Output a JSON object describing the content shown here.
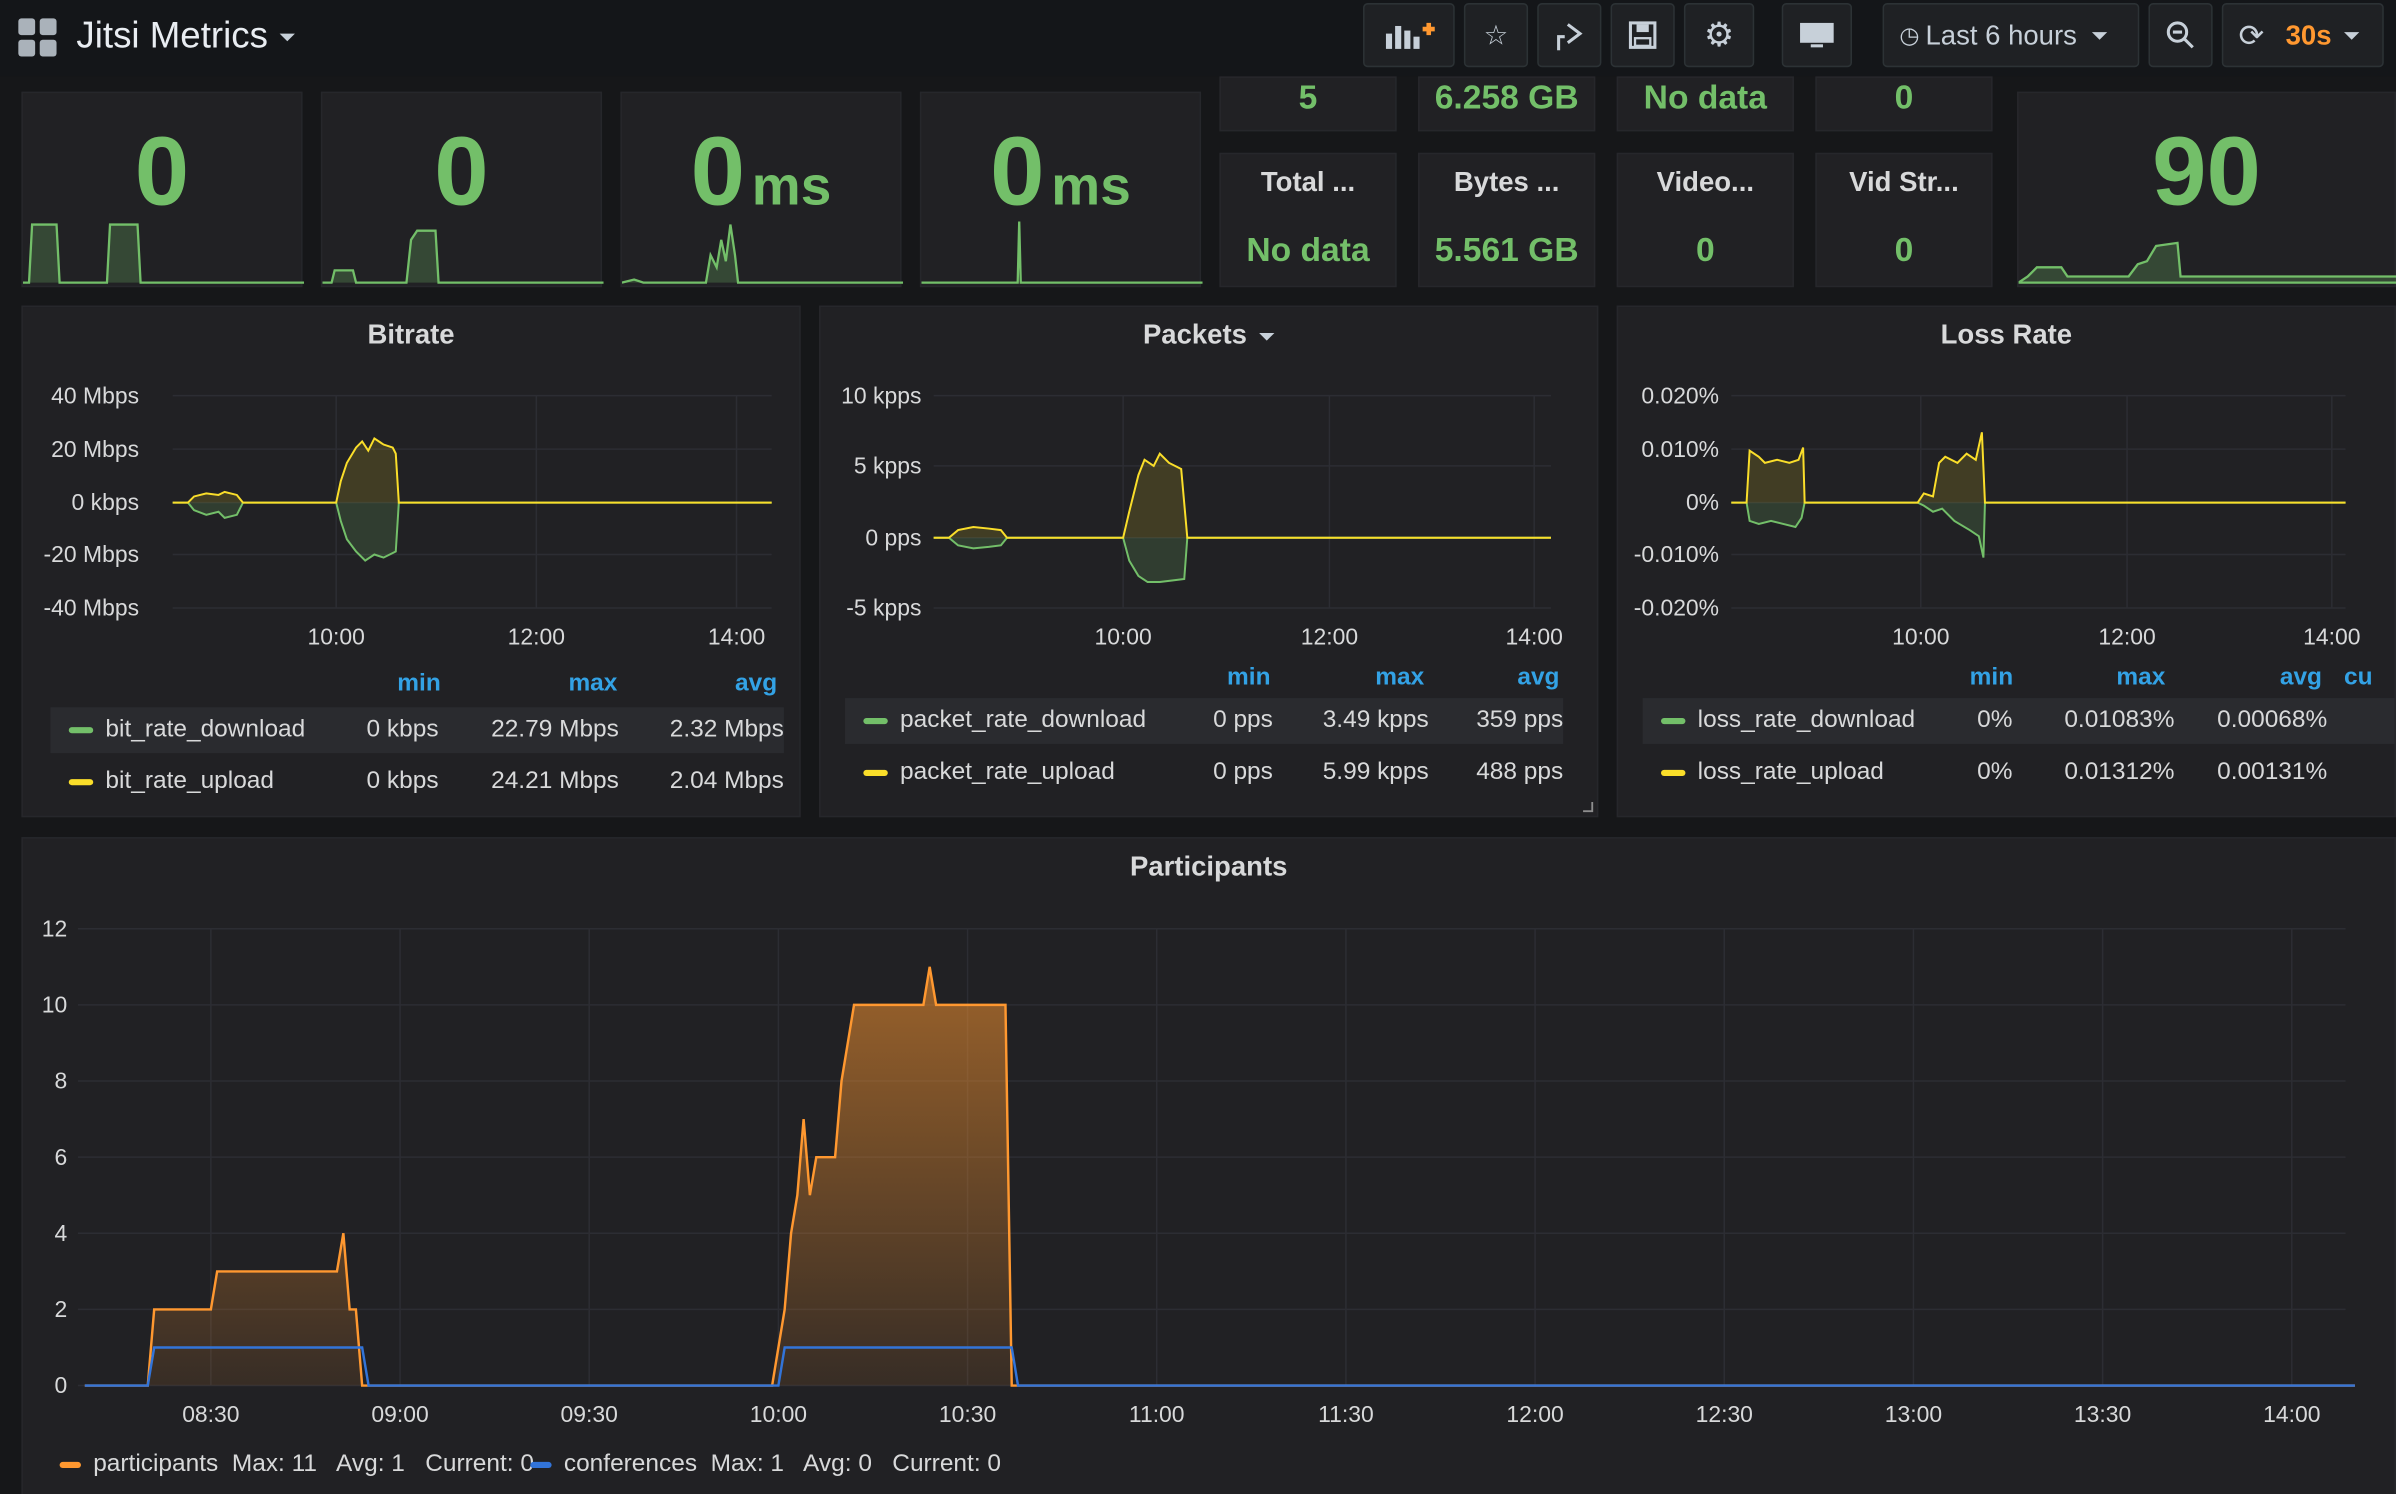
{
  "header": {
    "title": "Jitsi Metrics",
    "time_range": "Last 6 hours",
    "refresh_interval": "30s",
    "icons": [
      "apps-icon",
      "add-panel-icon",
      "star-icon",
      "share-icon",
      "save-icon",
      "settings-icon",
      "tv-mode-icon",
      "clock-icon",
      "zoom-out-icon",
      "refresh-icon"
    ]
  },
  "stats_top": {
    "s1": {
      "value": "0",
      "unit": ""
    },
    "s2": {
      "value": "0",
      "unit": ""
    },
    "s3": {
      "value": "0",
      "unit": "ms"
    },
    "s4": {
      "value": "0",
      "unit": "ms"
    },
    "cut_values": [
      "5",
      "6.258 GB",
      "No data",
      "0"
    ],
    "small": [
      {
        "label": "Total ...",
        "value": "No data"
      },
      {
        "label": "Bytes ...",
        "value": "5.561 GB"
      },
      {
        "label": "Video...",
        "value": "0"
      },
      {
        "label": "Vid Str...",
        "value": "0"
      }
    ],
    "s_right": {
      "value": "90"
    }
  },
  "colors": {
    "green": "#73bf69",
    "yellow": "#fade2a",
    "orange": "#ff9830",
    "blue": "#3274d9",
    "header_blue": "#33a2e5"
  },
  "bitrate": {
    "title": "Bitrate",
    "y_ticks": [
      "40 Mbps",
      "20 Mbps",
      "0 kbps",
      "-20 Mbps",
      "-40 Mbps"
    ],
    "x_ticks": [
      "10:00",
      "12:00",
      "14:00"
    ],
    "legend_headers": [
      "min",
      "max",
      "avg"
    ],
    "rows": [
      {
        "name": "bit_rate_download",
        "min": "0 kbps",
        "max": "22.79 Mbps",
        "avg": "2.32 Mbps"
      },
      {
        "name": "bit_rate_upload",
        "min": "0 kbps",
        "max": "24.21 Mbps",
        "avg": "2.04 Mbps"
      }
    ]
  },
  "packets": {
    "title": "Packets",
    "y_ticks": [
      "10 kpps",
      "5 kpps",
      "0 pps",
      "-5 kpps"
    ],
    "x_ticks": [
      "10:00",
      "12:00",
      "14:00"
    ],
    "legend_headers": [
      "min",
      "max",
      "avg"
    ],
    "rows": [
      {
        "name": "packet_rate_download",
        "min": "0 pps",
        "max": "3.49 kpps",
        "avg": "359 pps"
      },
      {
        "name": "packet_rate_upload",
        "min": "0 pps",
        "max": "5.99 kpps",
        "avg": "488 pps"
      }
    ]
  },
  "loss": {
    "title": "Loss Rate",
    "y_ticks": [
      "0.020%",
      "0.010%",
      "0%",
      "-0.010%",
      "-0.020%"
    ],
    "x_ticks": [
      "10:00",
      "12:00",
      "14:00"
    ],
    "legend_headers": [
      "min",
      "max",
      "avg",
      "cu"
    ],
    "rows": [
      {
        "name": "loss_rate_download",
        "min": "0%",
        "max": "0.01083%",
        "avg": "0.00068%"
      },
      {
        "name": "loss_rate_upload",
        "min": "0%",
        "max": "0.01312%",
        "avg": "0.00131%"
      }
    ]
  },
  "participants": {
    "title": "Participants",
    "legend": [
      {
        "name": "participants",
        "stats": "Max: 11   Avg: 1   Current: 0"
      },
      {
        "name": "conferences",
        "stats": "Max: 1   Avg: 0   Current: 0"
      }
    ]
  },
  "chart_data": [
    {
      "type": "area",
      "title": "Participants",
      "ylim": [
        0,
        12
      ],
      "y_ticks": [
        "0",
        "2",
        "4",
        "6",
        "8",
        "10",
        "12"
      ],
      "x_ticks": [
        "08:30",
        "09:00",
        "09:30",
        "10:00",
        "10:30",
        "11:00",
        "11:30",
        "12:00",
        "12:30",
        "13:00",
        "13:30",
        "14:00"
      ],
      "series": [
        {
          "name": "participants",
          "points": [
            [
              "08:10",
              0
            ],
            [
              "08:20",
              0
            ],
            [
              "08:21",
              2
            ],
            [
              "08:30",
              2
            ],
            [
              "08:31",
              3
            ],
            [
              "08:50",
              3
            ],
            [
              "08:51",
              4
            ],
            [
              "08:52",
              2
            ],
            [
              "08:53",
              2
            ],
            [
              "08:54",
              0
            ],
            [
              "09:59",
              0
            ],
            [
              "10:00",
              1
            ],
            [
              "10:01",
              2
            ],
            [
              "10:02",
              4
            ],
            [
              "10:03",
              5
            ],
            [
              "10:04",
              7
            ],
            [
              "10:05",
              5
            ],
            [
              "10:06",
              6
            ],
            [
              "10:09",
              6
            ],
            [
              "10:10",
              8
            ],
            [
              "10:11",
              9
            ],
            [
              "10:12",
              10
            ],
            [
              "10:23",
              10
            ],
            [
              "10:24",
              11
            ],
            [
              "10:25",
              10
            ],
            [
              "10:36",
              10
            ],
            [
              "10:37",
              0
            ],
            [
              "14:10",
              0
            ]
          ]
        },
        {
          "name": "conferences",
          "points": [
            [
              "08:10",
              0
            ],
            [
              "08:20",
              0
            ],
            [
              "08:21",
              1
            ],
            [
              "08:54",
              1
            ],
            [
              "08:55",
              0
            ],
            [
              "10:00",
              0
            ],
            [
              "10:01",
              1
            ],
            [
              "10:37",
              1
            ],
            [
              "10:38",
              0
            ],
            [
              "14:10",
              0
            ]
          ]
        }
      ]
    }
  ]
}
